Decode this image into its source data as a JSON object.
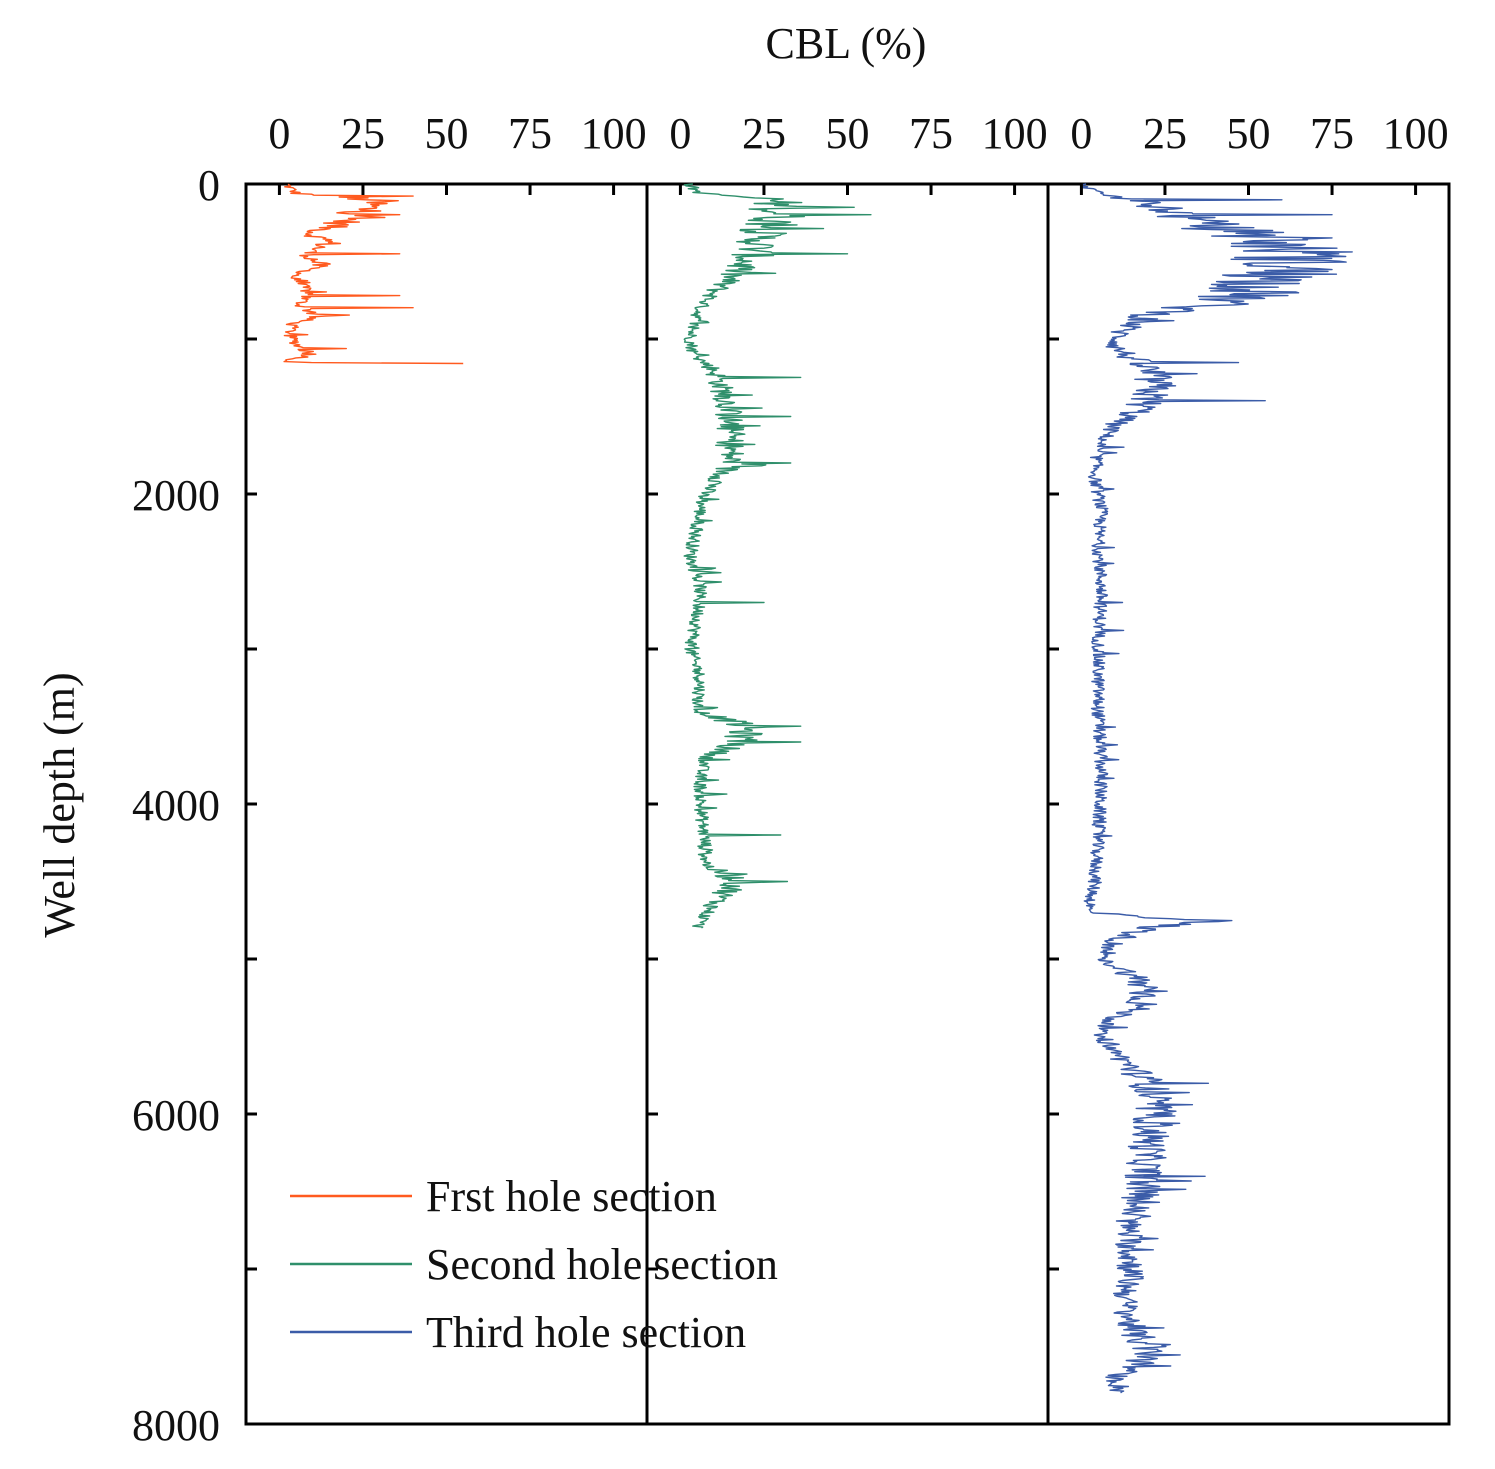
{
  "chart_data": {
    "type": "line",
    "title": "",
    "xlabel": "CBL (%)",
    "ylabel": "Well depth (m)",
    "ylim": [
      0,
      8000
    ],
    "y_inverted": true,
    "y_ticks": [
      0,
      2000,
      4000,
      6000,
      8000
    ],
    "y_tick_labels": [
      "0",
      "2000",
      "4000",
      "6000",
      "8000"
    ],
    "grid": false,
    "legend_position": "bottom-left",
    "panels": [
      {
        "name": "first-panel",
        "xlim": [
          -10,
          110
        ],
        "x_ticks": [
          0,
          25,
          50,
          75,
          100
        ],
        "x_tick_labels": [
          "0",
          "25",
          "50",
          "75",
          "100"
        ]
      },
      {
        "name": "second-panel",
        "xlim": [
          -10,
          110
        ],
        "x_ticks": [
          0,
          25,
          50,
          75,
          100
        ],
        "x_tick_labels": [
          "0",
          "25",
          "50",
          "75",
          "100"
        ]
      },
      {
        "name": "third-panel",
        "xlim": [
          -10,
          110
        ],
        "x_ticks": [
          0,
          25,
          50,
          75,
          100
        ],
        "x_tick_labels": [
          "0",
          "25",
          "50",
          "75",
          "100"
        ]
      }
    ],
    "series": [
      {
        "name": "Frst hole section",
        "panel": 0,
        "color": "#ff5a1f",
        "depth": [
          0,
          60,
          100,
          180,
          260,
          320,
          380,
          450,
          520,
          600,
          700,
          780,
          850,
          900,
          980,
          1050,
          1100,
          1150,
          1160
        ],
        "values": [
          2,
          5,
          28,
          25,
          18,
          9,
          15,
          8,
          12,
          4,
          9,
          6,
          12,
          4,
          3,
          6,
          10,
          1,
          8
        ],
        "spikes": [
          {
            "depth": 80,
            "value": 40
          },
          {
            "depth": 200,
            "value": 36
          },
          {
            "depth": 450,
            "value": 36
          },
          {
            "depth": 720,
            "value": 36
          },
          {
            "depth": 800,
            "value": 40
          },
          {
            "depth": 1060,
            "value": 20
          },
          {
            "depth": 1160,
            "value": 55
          }
        ]
      },
      {
        "name": "Second hole section",
        "panel": 1,
        "color": "#2f8f6b",
        "depth": [
          0,
          60,
          100,
          200,
          300,
          450,
          600,
          700,
          800,
          900,
          1000,
          1100,
          1200,
          1400,
          1600,
          1800,
          1900,
          2000,
          2200,
          2400,
          2600,
          2800,
          3000,
          3200,
          3400,
          3500,
          3600,
          3700,
          3800,
          4000,
          4200,
          4400,
          4500,
          4600,
          4700,
          4800
        ],
        "values": [
          2,
          6,
          28,
          30,
          25,
          22,
          15,
          10,
          6,
          4,
          3,
          4,
          10,
          14,
          15,
          15,
          12,
          7,
          5,
          3,
          6,
          5,
          3,
          6,
          5,
          20,
          18,
          8,
          6,
          6,
          7,
          8,
          18,
          12,
          8,
          5
        ],
        "spikes": [
          {
            "depth": 150,
            "value": 52
          },
          {
            "depth": 200,
            "value": 57
          },
          {
            "depth": 450,
            "value": 50
          },
          {
            "depth": 1250,
            "value": 36
          },
          {
            "depth": 1500,
            "value": 33
          },
          {
            "depth": 1800,
            "value": 33
          },
          {
            "depth": 2700,
            "value": 25
          },
          {
            "depth": 3500,
            "value": 36
          },
          {
            "depth": 3600,
            "value": 36
          },
          {
            "depth": 4200,
            "value": 30
          },
          {
            "depth": 4500,
            "value": 32
          }
        ]
      },
      {
        "name": "Third hole section",
        "panel": 2,
        "color": "#3b5ca8",
        "depth": [
          0,
          60,
          150,
          250,
          350,
          450,
          550,
          650,
          750,
          850,
          950,
          1050,
          1200,
          1300,
          1450,
          1550,
          1700,
          1900,
          2100,
          2300,
          2600,
          3000,
          3400,
          3800,
          4200,
          4500,
          4700,
          4750,
          4800,
          4900,
          5000,
          5100,
          5200,
          5300,
          5400,
          5500,
          5600,
          5700,
          5800,
          6000,
          6200,
          6500,
          6700,
          7000,
          7200,
          7400,
          7500,
          7600,
          7700,
          7800
        ],
        "values": [
          0,
          5,
          25,
          35,
          55,
          65,
          60,
          55,
          45,
          20,
          12,
          10,
          20,
          22,
          18,
          10,
          5,
          4,
          6,
          5,
          6,
          5,
          5,
          6,
          5,
          4,
          2,
          35,
          20,
          8,
          6,
          15,
          20,
          18,
          8,
          5,
          10,
          15,
          20,
          22,
          20,
          18,
          14,
          15,
          13,
          15,
          20,
          18,
          10,
          12
        ],
        "spikes": [
          {
            "depth": 100,
            "value": 60
          },
          {
            "depth": 200,
            "value": 75
          },
          {
            "depth": 350,
            "value": 75
          },
          {
            "depth": 450,
            "value": 77
          },
          {
            "depth": 550,
            "value": 75
          },
          {
            "depth": 700,
            "value": 65
          },
          {
            "depth": 1150,
            "value": 47
          },
          {
            "depth": 1400,
            "value": 55
          },
          {
            "depth": 4750,
            "value": 45
          },
          {
            "depth": 5800,
            "value": 38
          },
          {
            "depth": 6400,
            "value": 37
          }
        ]
      }
    ]
  },
  "labels": {
    "x_axis_title": "CBL (%)",
    "y_axis_title": "Well depth (m)"
  }
}
